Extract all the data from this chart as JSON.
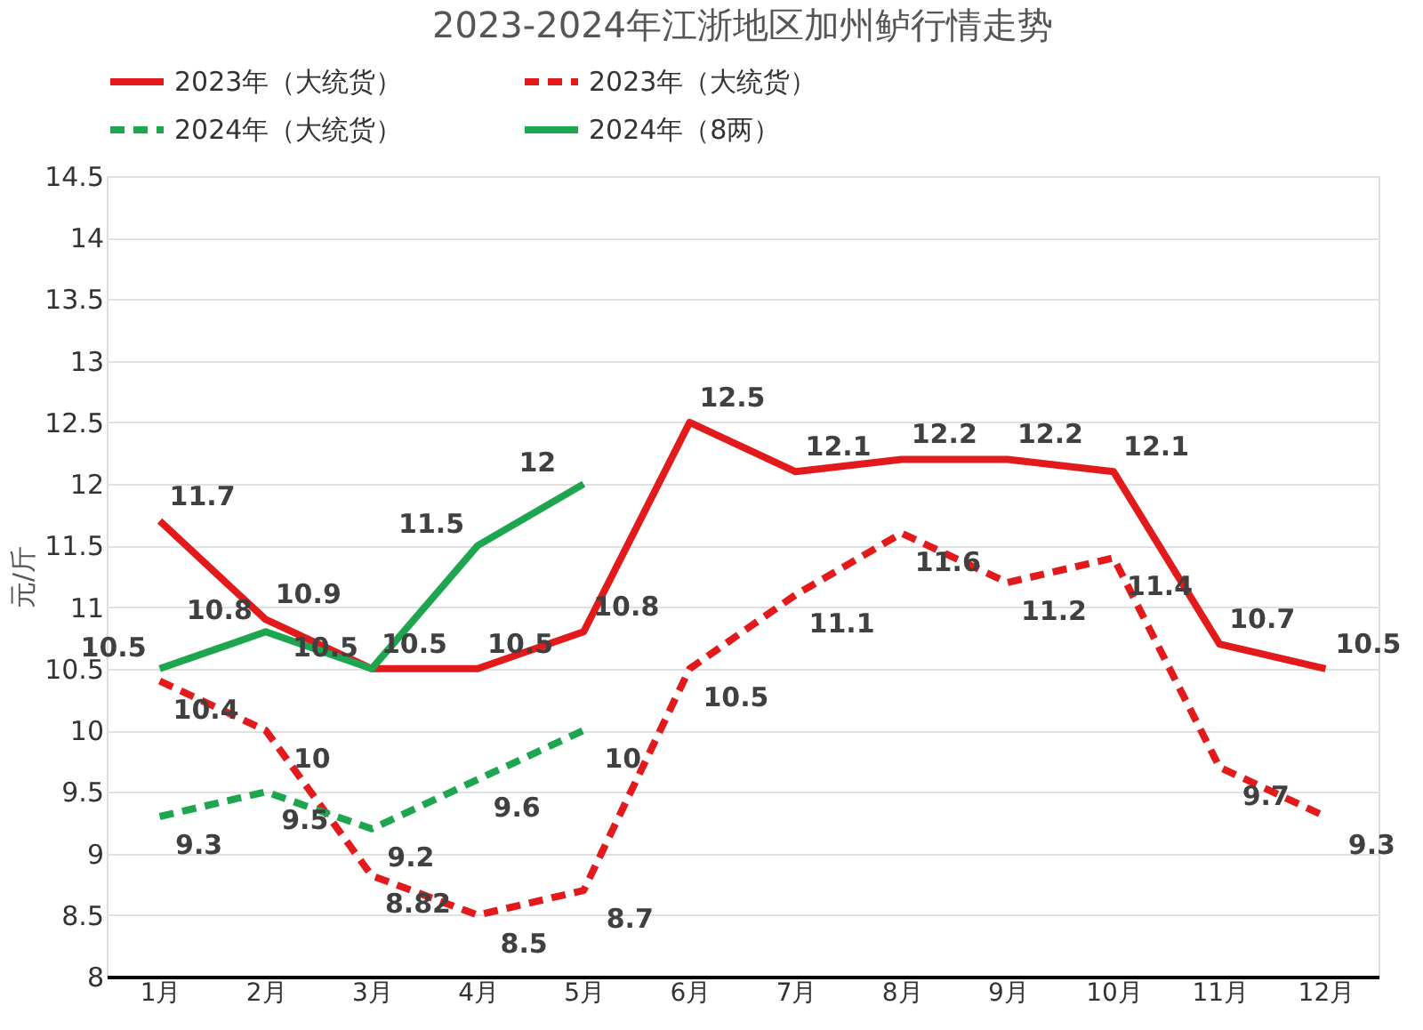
{
  "chart_data": {
    "type": "line",
    "title": "2023-2024年江浙地区加州鲈行情走势",
    "ylabel": "元/斤",
    "categories": [
      "1月",
      "2月",
      "3月",
      "4月",
      "5月",
      "6月",
      "7月",
      "8月",
      "9月",
      "10月",
      "11月",
      "12月"
    ],
    "series": [
      {
        "name": "2023年（大统货）",
        "color": "#e31a1c",
        "line_style": "solid",
        "values": [
          11.7,
          10.9,
          10.5,
          10.5,
          10.8,
          12.5,
          12.1,
          12.2,
          12.2,
          12.1,
          10.7,
          10.5
        ]
      },
      {
        "name": "2023年（大统货）",
        "color": "#e31a1c",
        "line_style": "dashed",
        "values": [
          10.4,
          10,
          8.82,
          8.5,
          8.7,
          10.5,
          11.1,
          11.6,
          11.2,
          11.4,
          9.7,
          9.3
        ]
      },
      {
        "name": "2024年（大统货）",
        "color": "#1ea550",
        "line_style": "dashed",
        "values": [
          9.3,
          9.5,
          9.2,
          9.6,
          10,
          null,
          null,
          null,
          null,
          null,
          null,
          null
        ]
      },
      {
        "name": "2024年（8两）",
        "color": "#1ea550",
        "line_style": "solid",
        "values": [
          10.5,
          10.8,
          10.5,
          11.5,
          12,
          null,
          null,
          null,
          null,
          null,
          null,
          null
        ]
      }
    ],
    "ylim": [
      8,
      14.5
    ],
    "yticks": [
      8,
      8.5,
      9,
      9.5,
      10,
      10.5,
      11,
      11.5,
      12,
      12.5,
      13,
      13.5,
      14,
      14.5
    ],
    "grid": "y",
    "legend": "top",
    "data_labels": true,
    "marker": "none"
  }
}
